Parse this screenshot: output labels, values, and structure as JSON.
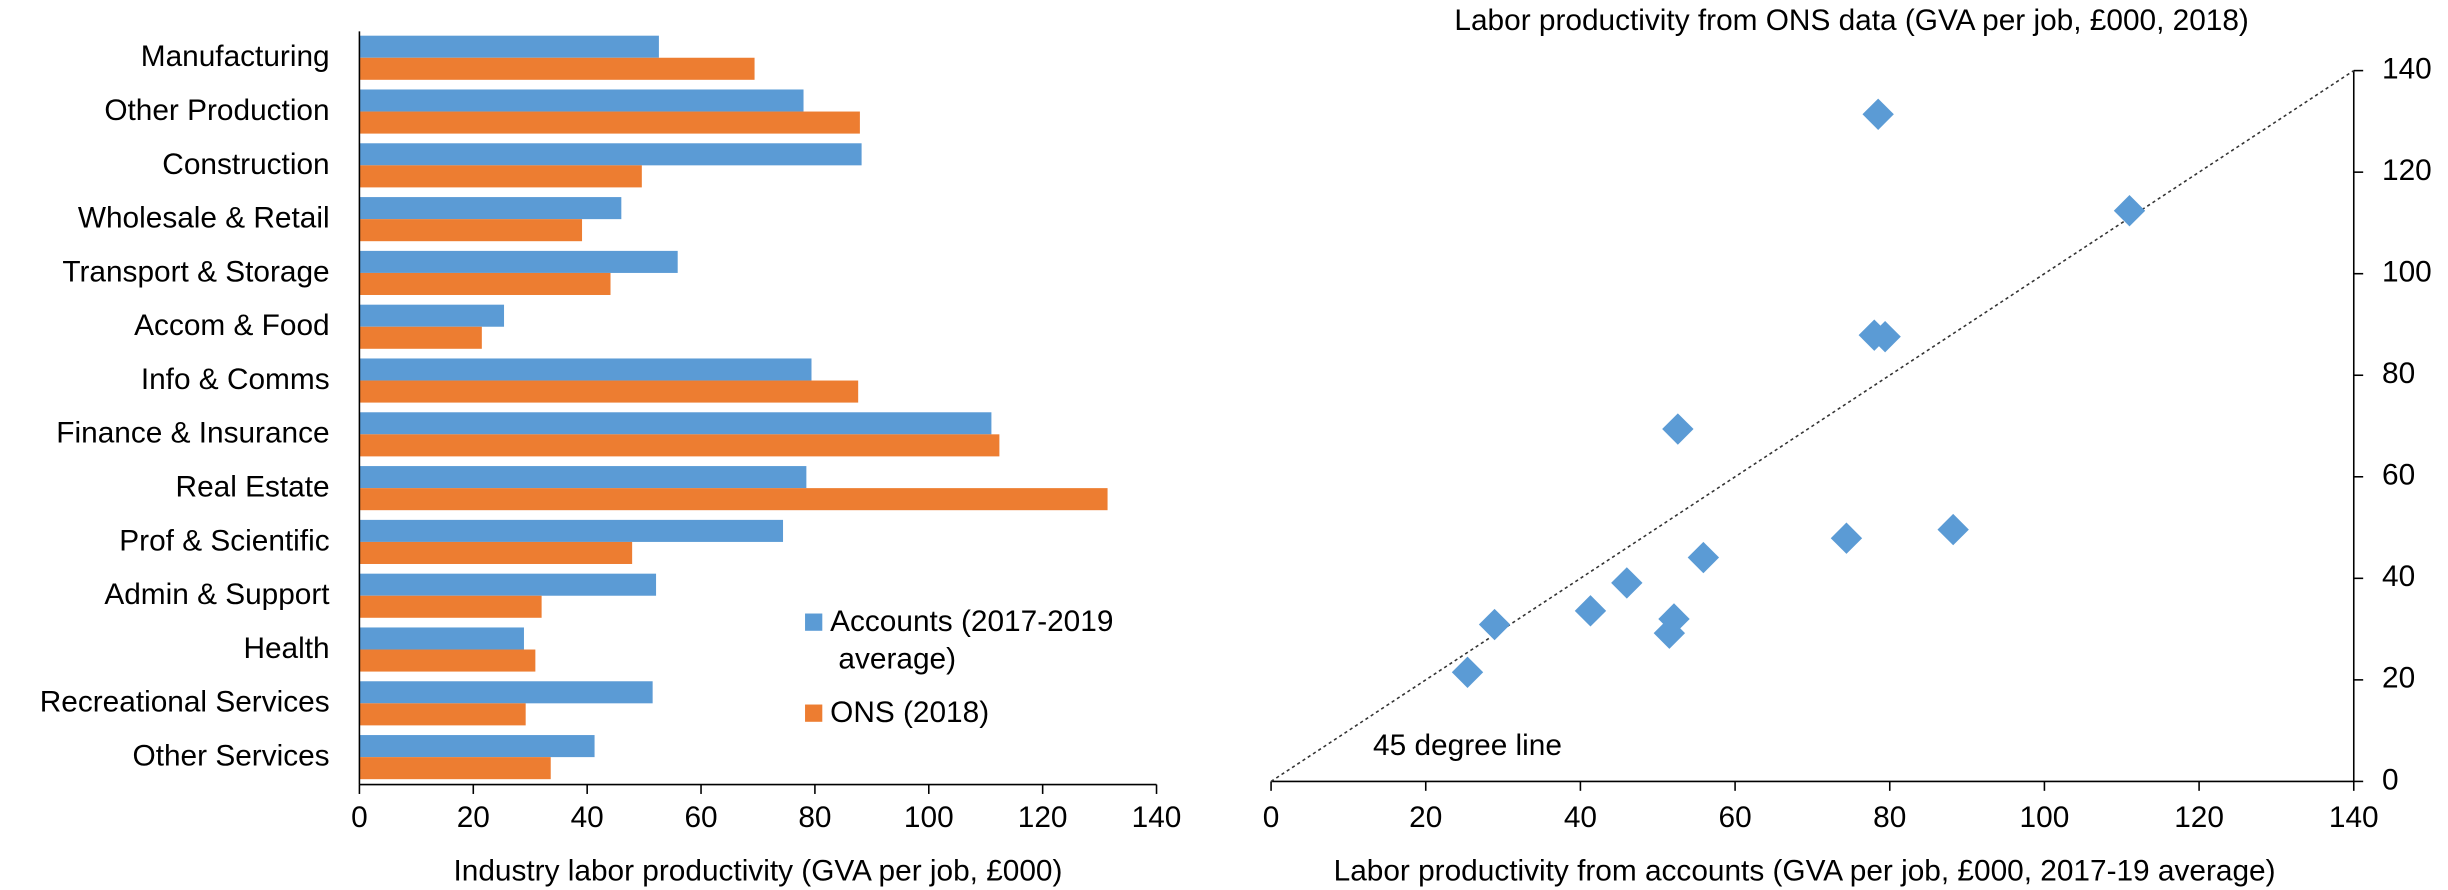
{
  "chart_data": [
    {
      "type": "bar",
      "orientation": "horizontal",
      "categories": [
        "Manufacturing",
        "Other Production",
        "Construction",
        "Wholesale & Retail",
        "Transport & Storage",
        "Accom & Food",
        "Info & Comms",
        "Finance & Insurance",
        "Real Estate",
        "Prof & Scientific",
        "Admin & Support",
        "Health",
        "Recreational Services",
        "Other Services"
      ],
      "series": [
        {
          "name": "Accounts (2017-2019 average)",
          "color": "#5b9bd5",
          "values": [
            52.6,
            78,
            88.2,
            46,
            55.9,
            25.4,
            79.4,
            111,
            78.5,
            74.4,
            52.1,
            28.9,
            51.5,
            41.3
          ]
        },
        {
          "name": "ONS (2018)",
          "color": "#ed7d31",
          "values": [
            69.4,
            87.9,
            49.6,
            39.1,
            44.1,
            21.5,
            87.6,
            112.4,
            131.4,
            47.9,
            32,
            30.9,
            29.2,
            33.6
          ]
        }
      ],
      "xlim": [
        0,
        140
      ],
      "xticks": [
        0,
        20,
        40,
        60,
        80,
        100,
        120,
        140
      ],
      "xlabel": "Industry labor productivity (GVA per job, £000)"
    },
    {
      "type": "scatter",
      "color": "#5b9bd5",
      "x": [
        52.6,
        78,
        88.2,
        46,
        55.9,
        25.4,
        79.4,
        111,
        78.5,
        74.4,
        52.1,
        28.9,
        51.5,
        41.3
      ],
      "y": [
        69.4,
        87.9,
        49.6,
        39.1,
        44.1,
        21.5,
        87.6,
        112.4,
        131.4,
        47.9,
        32,
        30.9,
        29.2,
        33.6
      ],
      "xlim": [
        0,
        140
      ],
      "ylim": [
        0,
        140
      ],
      "xticks": [
        0,
        20,
        40,
        60,
        80,
        100,
        120,
        140
      ],
      "yticks": [
        0,
        20,
        40,
        60,
        80,
        100,
        120,
        140
      ],
      "xlabel": "Labor productivity from accounts (GVA per job, £000, 2017-19 average)",
      "ylabel": "Labor productivity from ONS data (GVA per job, £000, 2018)",
      "diagonal": true,
      "annotation": "45 degree line"
    }
  ]
}
